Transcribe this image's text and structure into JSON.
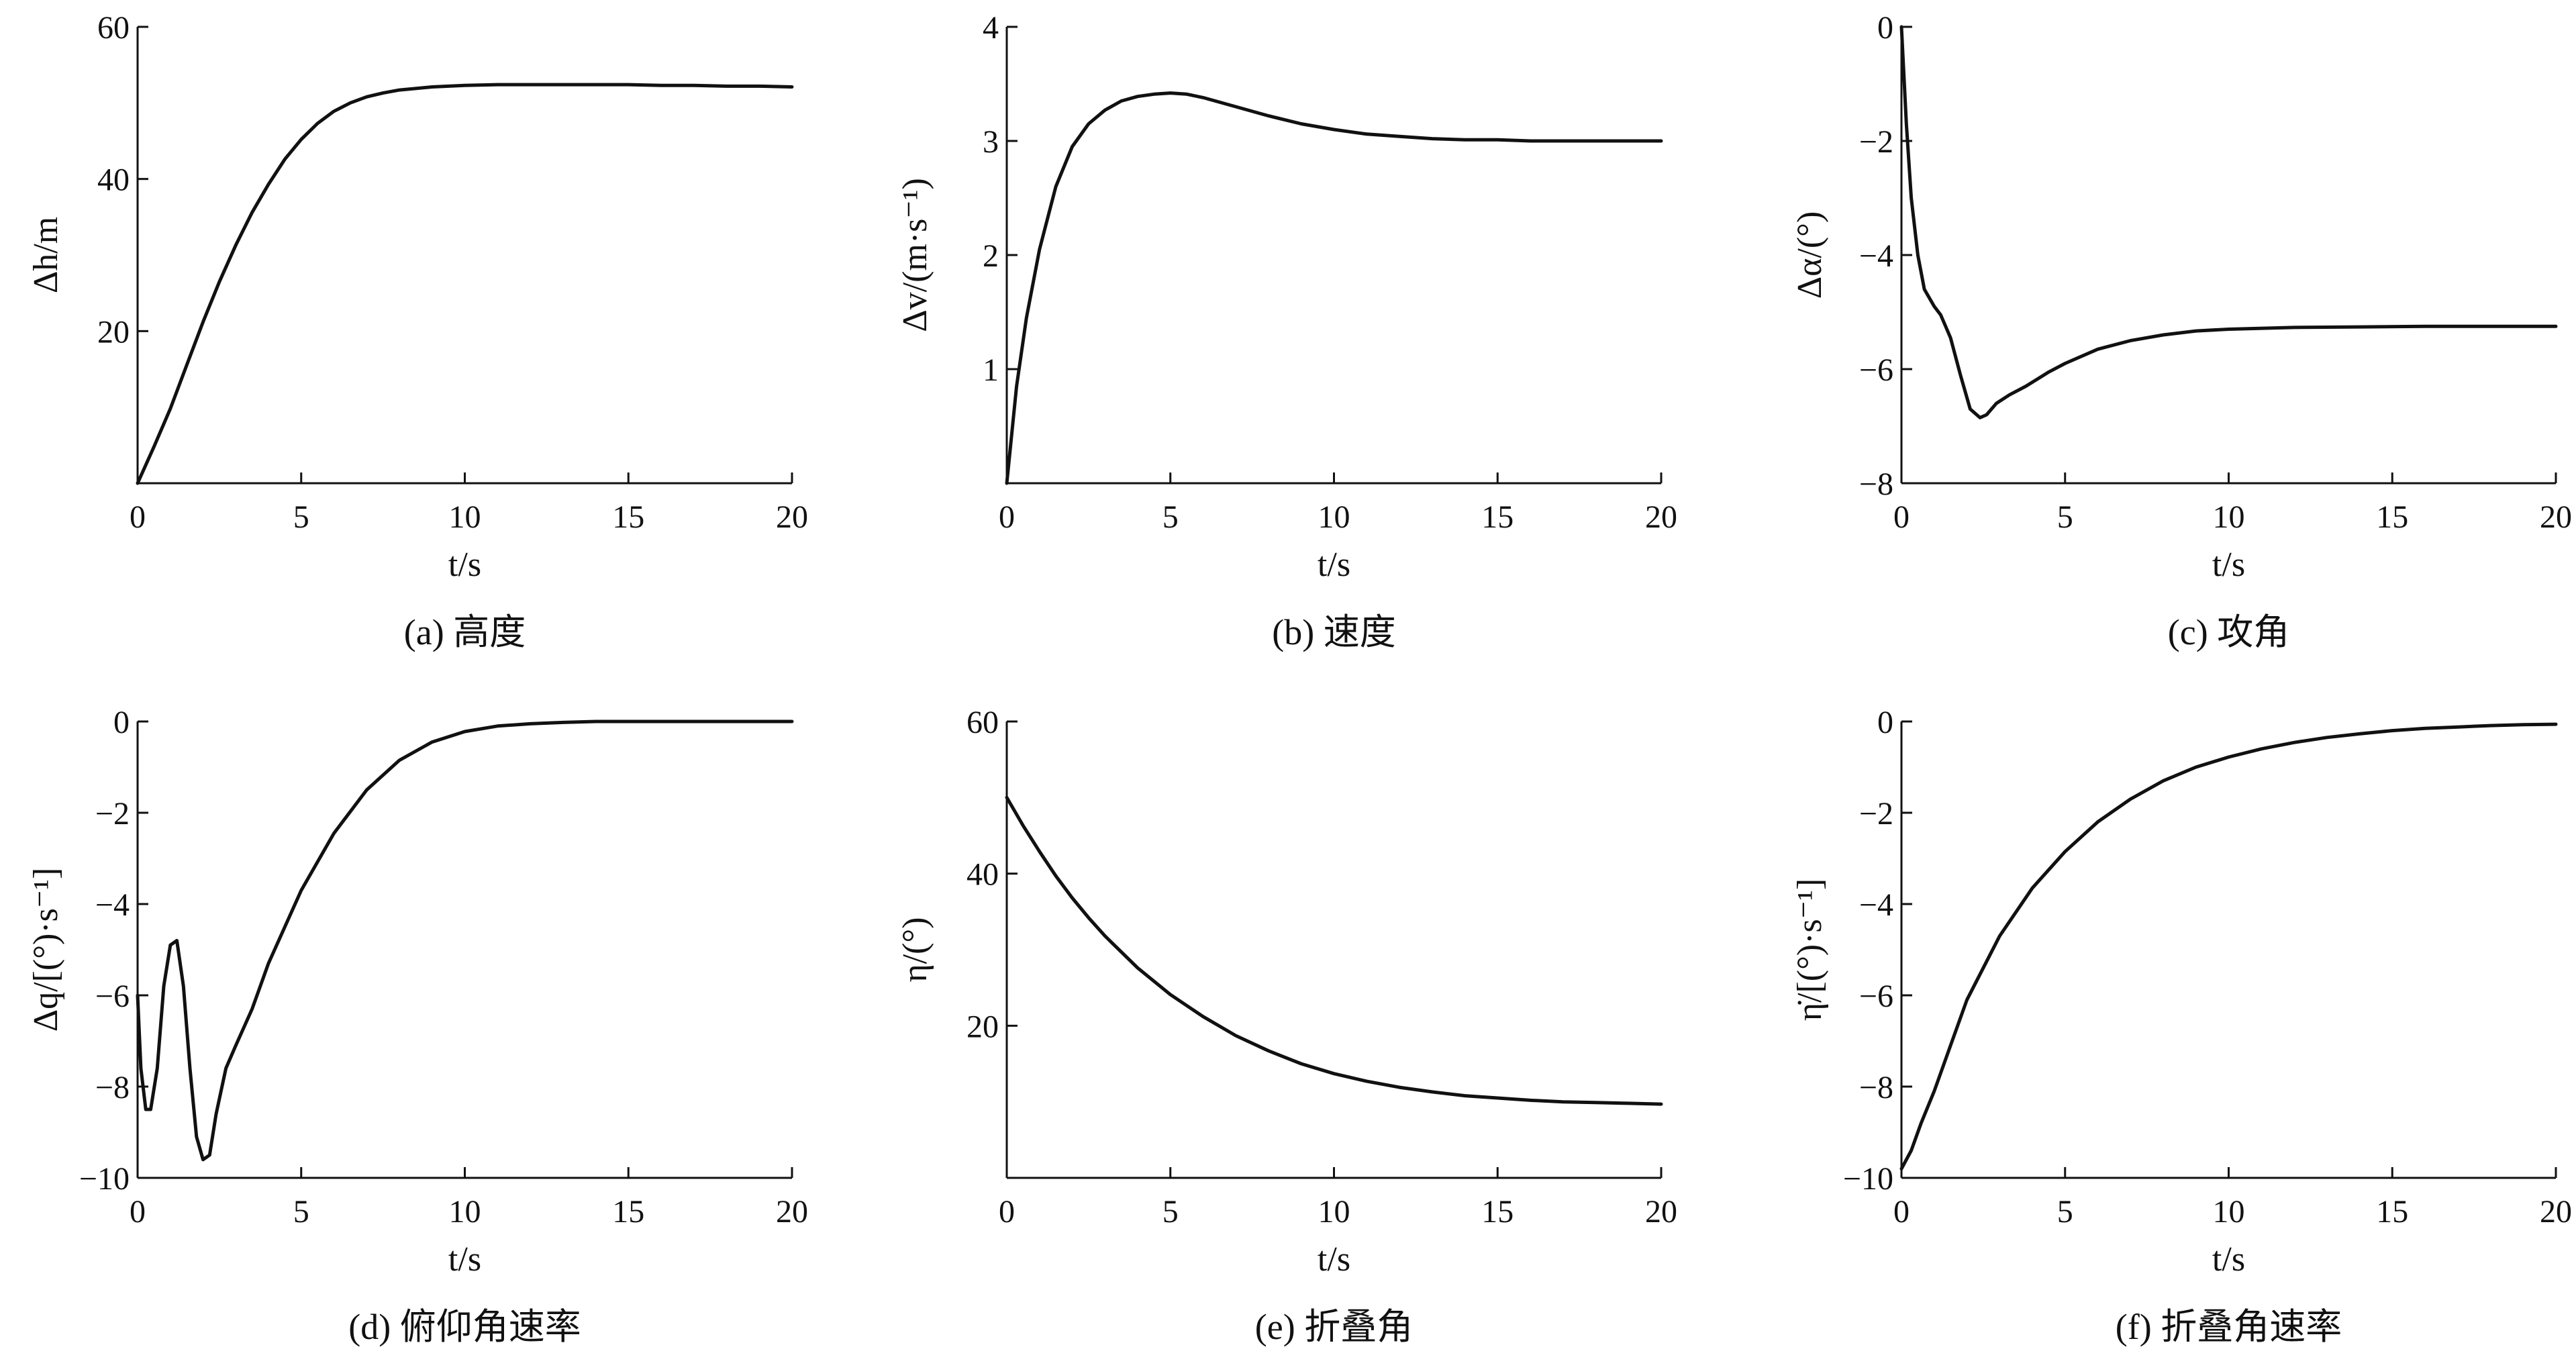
{
  "chart_data": [
    {
      "type": "line",
      "caption": "(a) 高度",
      "xlabel": "t/s",
      "ylabel": "Δh/m",
      "xlim": [
        0,
        20
      ],
      "ylim": [
        0,
        60
      ],
      "xticks": [
        0,
        5,
        10,
        15,
        20
      ],
      "yticks": [
        20,
        40,
        60
      ],
      "series": [
        {
          "x": [
            0,
            0.5,
            1,
            1.5,
            2,
            2.5,
            3,
            3.5,
            4,
            4.5,
            5,
            5.5,
            6,
            6.5,
            7,
            7.5,
            8,
            9,
            10,
            11,
            12,
            13,
            14,
            15,
            16,
            17,
            18,
            19,
            20
          ],
          "y": [
            0,
            4.8,
            9.8,
            15.5,
            21.2,
            26.5,
            31.3,
            35.6,
            39.3,
            42.6,
            45.2,
            47.3,
            48.9,
            50.0,
            50.8,
            51.3,
            51.7,
            52.1,
            52.3,
            52.4,
            52.4,
            52.4,
            52.4,
            52.4,
            52.3,
            52.3,
            52.2,
            52.2,
            52.1
          ]
        }
      ]
    },
    {
      "type": "line",
      "caption": "(b) 速度",
      "xlabel": "t/s",
      "ylabel": "Δv/(m·s⁻¹)",
      "xlim": [
        0,
        20
      ],
      "ylim": [
        0,
        4
      ],
      "xticks": [
        0,
        5,
        10,
        15,
        20
      ],
      "yticks": [
        1,
        2,
        3,
        4
      ],
      "series": [
        {
          "x": [
            0,
            0.3,
            0.6,
            1,
            1.5,
            2,
            2.5,
            3,
            3.5,
            4,
            4.5,
            5,
            5.5,
            6,
            7,
            8,
            9,
            10,
            11,
            12,
            13,
            14,
            15,
            16,
            17,
            18,
            19,
            20
          ],
          "y": [
            0,
            0.85,
            1.45,
            2.05,
            2.6,
            2.95,
            3.15,
            3.27,
            3.35,
            3.39,
            3.41,
            3.42,
            3.41,
            3.38,
            3.3,
            3.22,
            3.15,
            3.1,
            3.06,
            3.04,
            3.02,
            3.01,
            3.01,
            3.0,
            3.0,
            3.0,
            3.0,
            3.0
          ]
        }
      ]
    },
    {
      "type": "line",
      "caption": "(c) 攻角",
      "xlabel": "t/s",
      "ylabel": "Δα/(°)",
      "xlim": [
        0,
        20
      ],
      "ylim": [
        -8,
        0
      ],
      "xticks": [
        0,
        5,
        10,
        15,
        20
      ],
      "yticks": [
        0,
        -2,
        -4,
        -6,
        -8
      ],
      "series": [
        {
          "x": [
            0,
            0.15,
            0.3,
            0.5,
            0.7,
            1,
            1.2,
            1.5,
            1.8,
            2.1,
            2.4,
            2.6,
            2.9,
            3.3,
            3.8,
            4.5,
            5,
            6,
            7,
            8,
            9,
            10,
            12,
            14,
            16,
            18,
            20
          ],
          "y": [
            0,
            -1.7,
            -3.0,
            -4.0,
            -4.6,
            -4.9,
            -5.05,
            -5.45,
            -6.1,
            -6.7,
            -6.85,
            -6.8,
            -6.6,
            -6.45,
            -6.3,
            -6.05,
            -5.9,
            -5.65,
            -5.5,
            -5.4,
            -5.33,
            -5.3,
            -5.27,
            -5.26,
            -5.25,
            -5.25,
            -5.25
          ]
        }
      ]
    },
    {
      "type": "line",
      "caption": "(d) 俯仰角速率",
      "xlabel": "t/s",
      "ylabel": "Δq/[(°)·s⁻¹]",
      "xlim": [
        0,
        20
      ],
      "ylim": [
        -10,
        0
      ],
      "xticks": [
        0,
        5,
        10,
        15,
        20
      ],
      "yticks": [
        0,
        -2,
        -4,
        -6,
        -8,
        -10
      ],
      "series": [
        {
          "x": [
            0,
            0.1,
            0.25,
            0.4,
            0.6,
            0.8,
            1.0,
            1.2,
            1.4,
            1.6,
            1.8,
            2.0,
            2.2,
            2.4,
            2.7,
            3.0,
            3.5,
            4,
            4.5,
            5,
            6,
            7,
            8,
            9,
            10,
            11,
            12,
            13,
            14,
            15,
            17,
            20
          ],
          "y": [
            -6.0,
            -7.6,
            -8.5,
            -8.5,
            -7.6,
            -5.8,
            -4.9,
            -4.8,
            -5.8,
            -7.6,
            -9.1,
            -9.6,
            -9.5,
            -8.6,
            -7.6,
            -7.1,
            -6.3,
            -5.3,
            -4.5,
            -3.7,
            -2.45,
            -1.5,
            -0.85,
            -0.45,
            -0.22,
            -0.1,
            -0.05,
            -0.02,
            0,
            0,
            0,
            0
          ]
        }
      ]
    },
    {
      "type": "line",
      "caption": "(e) 折叠角",
      "xlabel": "t/s",
      "ylabel": "η/(°)",
      "xlim": [
        0,
        20
      ],
      "ylim": [
        0,
        60
      ],
      "xticks": [
        0,
        5,
        10,
        15,
        20
      ],
      "yticks": [
        20,
        40,
        60
      ],
      "series": [
        {
          "x": [
            0,
            0.5,
            1,
            1.5,
            2,
            2.5,
            3,
            4,
            5,
            6,
            7,
            8,
            9,
            10,
            11,
            12,
            13,
            14,
            15,
            16,
            17,
            18,
            19,
            20
          ],
          "y": [
            50,
            46.3,
            42.9,
            39.7,
            36.8,
            34.2,
            31.8,
            27.6,
            24.1,
            21.2,
            18.7,
            16.7,
            15.0,
            13.7,
            12.7,
            11.9,
            11.3,
            10.8,
            10.5,
            10.2,
            10.0,
            9.9,
            9.8,
            9.7
          ]
        }
      ]
    },
    {
      "type": "line",
      "caption": "(f) 折叠角速率",
      "xlabel": "t/s",
      "ylabel": "η̇/[(°)·s⁻¹]",
      "xlim": [
        0,
        20
      ],
      "ylim": [
        -10,
        0
      ],
      "xticks": [
        0,
        5,
        10,
        15,
        20
      ],
      "yticks": [
        0,
        -2,
        -4,
        -6,
        -8,
        -10
      ],
      "series": [
        {
          "x": [
            0,
            0.3,
            0.6,
            1,
            1.5,
            2,
            2.5,
            3,
            4,
            5,
            6,
            7,
            8,
            9,
            10,
            11,
            12,
            13,
            14,
            15,
            16,
            17,
            18,
            19,
            20
          ],
          "y": [
            -9.8,
            -9.4,
            -8.8,
            -8.1,
            -7.1,
            -6.1,
            -5.4,
            -4.7,
            -3.65,
            -2.85,
            -2.2,
            -1.7,
            -1.3,
            -1.0,
            -0.78,
            -0.6,
            -0.46,
            -0.35,
            -0.27,
            -0.2,
            -0.15,
            -0.12,
            -0.09,
            -0.07,
            -0.06
          ]
        }
      ]
    }
  ]
}
